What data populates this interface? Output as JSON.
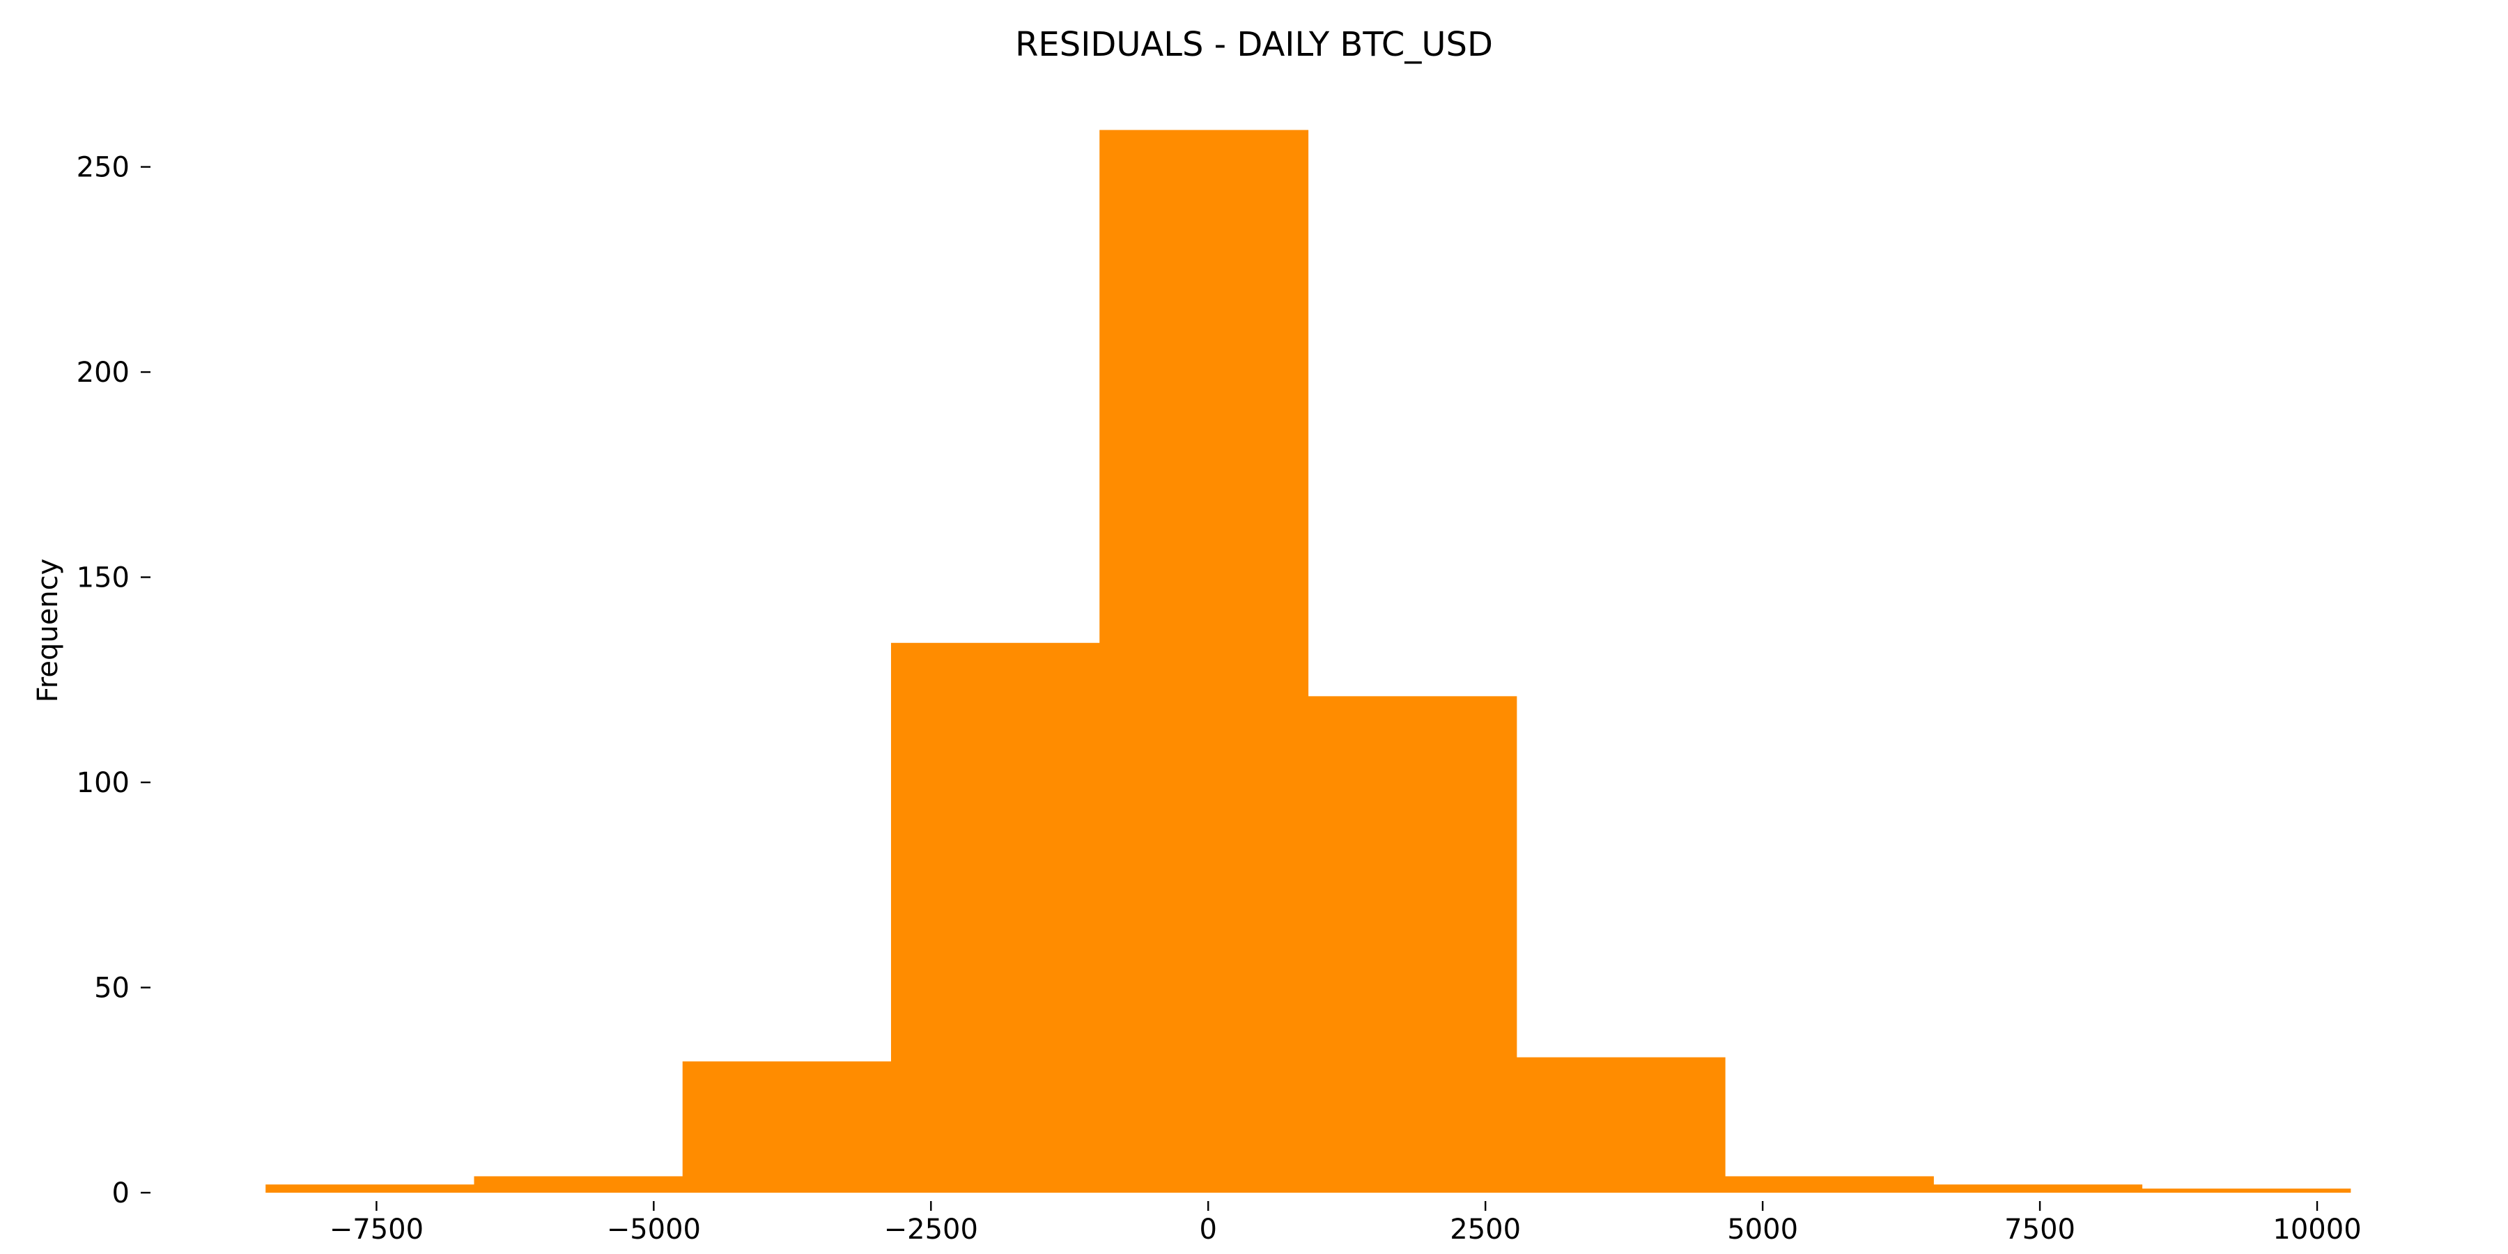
{
  "chart_data": {
    "type": "bar",
    "title": "RESIDUALS - DAILY BTC_USD",
    "xlabel": "",
    "ylabel": "Frequency",
    "bar_color": "#FF8C00",
    "grid": false,
    "legend": "none",
    "bins": [
      {
        "x0": -8500,
        "x1": -6620,
        "value": 2
      },
      {
        "x0": -6620,
        "x1": -4740,
        "value": 4
      },
      {
        "x0": -4740,
        "x1": -2860,
        "value": 32
      },
      {
        "x0": -2860,
        "x1": -980,
        "value": 134
      },
      {
        "x0": -980,
        "x1": 900,
        "value": 259
      },
      {
        "x0": 900,
        "x1": 2780,
        "value": 121
      },
      {
        "x0": 2780,
        "x1": 4660,
        "value": 33
      },
      {
        "x0": 4660,
        "x1": 6540,
        "value": 4
      },
      {
        "x0": 6540,
        "x1": 8420,
        "value": 2
      },
      {
        "x0": 8420,
        "x1": 10300,
        "value": 1
      }
    ],
    "xlim": [
      -9450,
      11250
    ],
    "ylim": [
      0,
      272
    ],
    "x_ticks": [
      {
        "value": -7500,
        "label": "−7500"
      },
      {
        "value": -5000,
        "label": "−5000"
      },
      {
        "value": -2500,
        "label": "−2500"
      },
      {
        "value": 0,
        "label": "0"
      },
      {
        "value": 2500,
        "label": "2500"
      },
      {
        "value": 5000,
        "label": "5000"
      },
      {
        "value": 7500,
        "label": "7500"
      },
      {
        "value": 10000,
        "label": "10000"
      }
    ],
    "y_ticks": [
      {
        "value": 0,
        "label": "0"
      },
      {
        "value": 50,
        "label": "50"
      },
      {
        "value": 100,
        "label": "100"
      },
      {
        "value": 150,
        "label": "150"
      },
      {
        "value": 200,
        "label": "200"
      },
      {
        "value": 250,
        "label": "250"
      }
    ]
  }
}
